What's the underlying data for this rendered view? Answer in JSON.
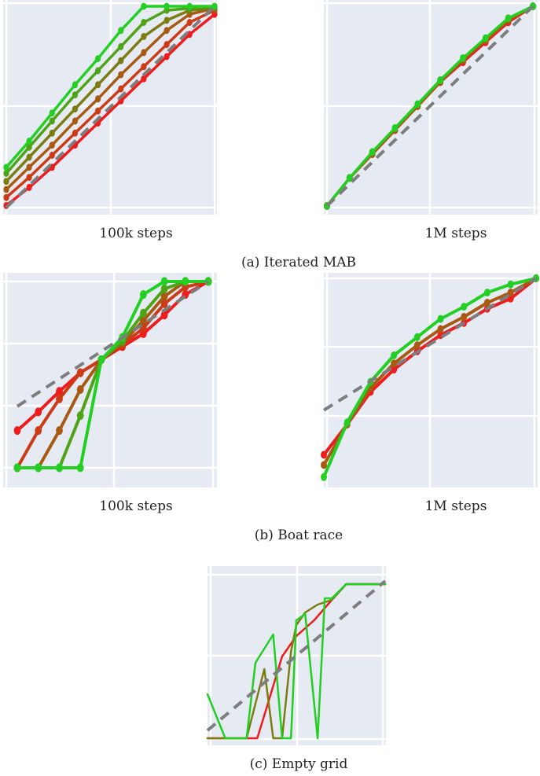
{
  "chart_data": [
    {
      "type": "line",
      "group": "a",
      "xlabel": "100k steps",
      "xlim": [
        0,
        1
      ],
      "ylim": [
        0,
        1
      ],
      "baseline": [
        [
          0,
          0
        ],
        [
          1,
          1
        ]
      ],
      "x": [
        0,
        0.11,
        0.22,
        0.33,
        0.44,
        0.55,
        0.66,
        0.77,
        0.88,
        1.0
      ],
      "series": [
        {
          "color": "#ee1c1c",
          "values": [
            0.01,
            0.1,
            0.2,
            0.31,
            0.42,
            0.53,
            0.64,
            0.75,
            0.86,
            0.96
          ],
          "markers": true
        },
        {
          "color": "#cc3a16",
          "values": [
            0.05,
            0.15,
            0.26,
            0.37,
            0.48,
            0.59,
            0.7,
            0.81,
            0.92,
            0.98
          ],
          "markers": true
        },
        {
          "color": "#a85a12",
          "values": [
            0.09,
            0.2,
            0.31,
            0.43,
            0.54,
            0.66,
            0.77,
            0.88,
            0.96,
            0.99
          ],
          "markers": true
        },
        {
          "color": "#7b7c12",
          "values": [
            0.13,
            0.25,
            0.37,
            0.49,
            0.61,
            0.73,
            0.85,
            0.93,
            0.98,
            0.99
          ],
          "markers": true
        },
        {
          "color": "#4ea316",
          "values": [
            0.17,
            0.3,
            0.43,
            0.56,
            0.68,
            0.8,
            0.92,
            0.98,
            0.99,
            1.0
          ],
          "markers": true
        },
        {
          "color": "#22cf22",
          "values": [
            0.2,
            0.33,
            0.47,
            0.61,
            0.74,
            0.88,
            1.0,
            1.0,
            1.0,
            1.0
          ],
          "markers": true
        }
      ]
    },
    {
      "type": "line",
      "group": "a",
      "xlabel": "1M steps",
      "xlim": [
        0,
        1
      ],
      "ylim": [
        0,
        1
      ],
      "baseline": [
        [
          0,
          0
        ],
        [
          1,
          1
        ]
      ],
      "x": [
        0,
        0.11,
        0.22,
        0.33,
        0.44,
        0.55,
        0.66,
        0.77,
        0.88,
        1.0
      ],
      "series": [
        {
          "color": "#ee1c1c",
          "values": [
            0.0,
            0.14,
            0.26,
            0.38,
            0.5,
            0.62,
            0.72,
            0.82,
            0.92,
            1.0
          ],
          "markers": true
        },
        {
          "color": "#a85a12",
          "values": [
            0.0,
            0.14,
            0.26,
            0.38,
            0.5,
            0.62,
            0.73,
            0.83,
            0.93,
            1.0
          ],
          "markers": true
        },
        {
          "color": "#22cf22",
          "values": [
            0.0,
            0.14,
            0.27,
            0.39,
            0.51,
            0.63,
            0.74,
            0.84,
            0.94,
            1.0
          ],
          "markers": true
        }
      ]
    },
    {
      "type": "line",
      "group": "b",
      "xlabel": "100k steps",
      "xlim": [
        0,
        1
      ],
      "ylim": [
        0,
        1
      ],
      "baseline": [
        [
          0,
          0.33
        ],
        [
          1,
          1
        ]
      ],
      "x": [
        0,
        0.11,
        0.22,
        0.33,
        0.44,
        0.55,
        0.66,
        0.77,
        0.88,
        1.0
      ],
      "series": [
        {
          "color": "#ee1c1c",
          "values": [
            0.2,
            0.3,
            0.41,
            0.51,
            0.58,
            0.65,
            0.72,
            0.82,
            0.93,
            1.0
          ],
          "markers": true
        },
        {
          "color": "#cc3a16",
          "values": [
            0.0,
            0.2,
            0.37,
            0.51,
            0.58,
            0.66,
            0.75,
            0.88,
            0.97,
            1.0
          ],
          "markers": true
        },
        {
          "color": "#a85a12",
          "values": [
            0.0,
            0.0,
            0.2,
            0.42,
            0.58,
            0.67,
            0.79,
            0.92,
            1.0,
            1.0
          ],
          "markers": true
        },
        {
          "color": "#4ea316",
          "values": [
            0.0,
            0.0,
            0.0,
            0.28,
            0.58,
            0.68,
            0.83,
            0.96,
            1.0,
            1.0
          ],
          "markers": true
        },
        {
          "color": "#22cf22",
          "values": [
            0.0,
            0.0,
            0.0,
            0.0,
            0.58,
            0.7,
            0.93,
            1.0,
            1.0,
            1.0
          ],
          "markers": true
        }
      ]
    },
    {
      "type": "line",
      "group": "b",
      "xlabel": "1M steps",
      "xlim": [
        0,
        1
      ],
      "ylim": [
        0,
        1
      ],
      "baseline": [
        [
          0,
          0.35
        ],
        [
          1,
          1
        ]
      ],
      "x": [
        0,
        0.11,
        0.22,
        0.33,
        0.44,
        0.55,
        0.66,
        0.77,
        0.88,
        1.0
      ],
      "series": [
        {
          "color": "#ee1c1c",
          "values": [
            0.13,
            0.28,
            0.44,
            0.55,
            0.64,
            0.72,
            0.78,
            0.85,
            0.9,
            1.0
          ],
          "markers": true
        },
        {
          "color": "#a85a12",
          "values": [
            0.08,
            0.28,
            0.46,
            0.58,
            0.67,
            0.75,
            0.81,
            0.88,
            0.93,
            1.0
          ],
          "markers": true
        },
        {
          "color": "#22cf22",
          "values": [
            0.02,
            0.29,
            0.49,
            0.62,
            0.71,
            0.8,
            0.86,
            0.93,
            0.97,
            1.0
          ],
          "markers": true
        }
      ]
    },
    {
      "type": "line",
      "group": "c",
      "xlabel": "",
      "xlim": [
        0,
        1
      ],
      "ylim": [
        0,
        1
      ],
      "baseline": [
        [
          0,
          0.05
        ],
        [
          1,
          1
        ]
      ],
      "series": [
        {
          "color": "#ee1c1c",
          "x": [
            0,
            0.28,
            0.34,
            0.42,
            0.5,
            0.6,
            0.7,
            0.78,
            1.0
          ],
          "values": [
            0.0,
            0.0,
            0.22,
            0.52,
            0.65,
            0.75,
            0.88,
            0.98,
            0.98
          ],
          "markers": false
        },
        {
          "color": "#7b7c12",
          "x": [
            0,
            0.1,
            0.22,
            0.32,
            0.37,
            0.42,
            0.47,
            0.5,
            0.55,
            0.62,
            0.7,
            0.78,
            1.0
          ],
          "values": [
            0.0,
            0.0,
            0.0,
            0.44,
            0.0,
            0.0,
            0.55,
            0.72,
            0.8,
            0.85,
            0.88,
            0.98,
            0.98
          ],
          "markers": false
        },
        {
          "color": "#22cf22",
          "x": [
            0,
            0.1,
            0.22,
            0.27,
            0.37,
            0.42,
            0.47,
            0.5,
            0.55,
            0.62,
            0.66,
            0.7,
            0.78,
            1.0
          ],
          "values": [
            0.28,
            0.0,
            0.0,
            0.48,
            0.66,
            0.0,
            0.0,
            0.75,
            0.79,
            0.0,
            0.89,
            0.89,
            0.98,
            0.98
          ],
          "markers": false
        }
      ]
    }
  ],
  "captions": {
    "a": "(a) Iterated MAB",
    "b": "(b) Boat race",
    "c": "(c) Empty grid"
  },
  "style": {
    "panel_background": "#e5eaf3",
    "grid_color": "#ffffff",
    "baseline_color": "#7d7d7d"
  }
}
